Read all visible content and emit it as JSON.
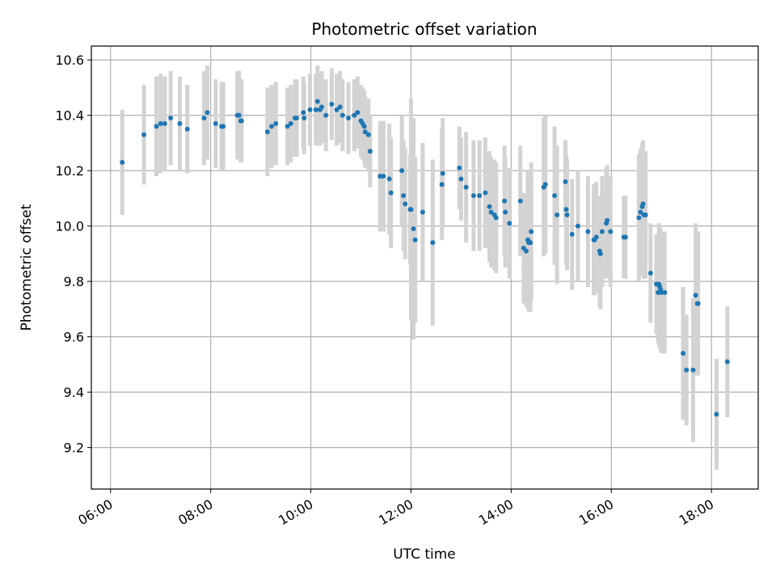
{
  "chart_data": {
    "type": "scatter",
    "title": "Photometric offset variation",
    "xlabel": "UTC time",
    "ylabel": "Photometric offset",
    "x_ticks": [
      "06:00",
      "08:00",
      "10:00",
      "12:00",
      "14:00",
      "16:00",
      "18:00"
    ],
    "y_ticks": [
      "9.2",
      "9.4",
      "9.6",
      "9.8",
      "10.0",
      "10.2",
      "10.4",
      "10.6"
    ],
    "xlim": [
      "05:37",
      "18:56"
    ],
    "ylim": [
      9.05,
      10.65
    ],
    "grid": true,
    "marker_color": "#1f77b4",
    "errorbar_color": "#d3d3d3",
    "series": [
      {
        "x": [
          "06:14",
          "06:40",
          "06:55",
          "07:00",
          "07:05",
          "07:12",
          "07:23",
          "07:32",
          "07:52",
          "07:56",
          "08:06",
          "08:13",
          "08:15",
          "08:32",
          "08:34",
          "08:36",
          "08:37",
          "09:08",
          "09:13",
          "09:18",
          "09:32",
          "09:36",
          "09:41",
          "09:43",
          "09:51",
          "09:52",
          "09:59",
          "10:06",
          "10:08",
          "10:11",
          "10:13",
          "10:18",
          "10:25",
          "10:31",
          "10:35",
          "10:38",
          "10:45",
          "10:52",
          "10:56",
          "11:00",
          "11:02",
          "11:04",
          "11:05",
          "11:09",
          "11:11",
          "11:23",
          "11:27",
          "11:34",
          "11:36",
          "11:49",
          "11:51",
          "11:53",
          "11:59",
          "12:00",
          "12:03",
          "12:05",
          "12:14",
          "12:26",
          "12:37",
          "12:38",
          "12:58",
          "13:00",
          "13:06",
          "13:15",
          "13:22",
          "13:29",
          "13:34",
          "13:36",
          "13:40",
          "13:42",
          "13:52",
          "13:53",
          "13:58",
          "14:11",
          "14:15",
          "14:18",
          "14:20",
          "14:21",
          "14:23",
          "14:24",
          "14:39",
          "14:41",
          "14:52",
          "14:55",
          "15:05",
          "15:06",
          "15:07",
          "15:13",
          "15:20",
          "15:32",
          "15:39",
          "15:40",
          "15:42",
          "15:46",
          "15:47",
          "15:49",
          "15:54",
          "15:55",
          "15:59",
          "16:15",
          "16:17",
          "16:33",
          "16:35",
          "16:37",
          "16:38",
          "16:39",
          "16:41",
          "16:47",
          "16:54",
          "16:56",
          "16:57",
          "16:58",
          "16:59",
          "17:00",
          "17:04",
          "17:26",
          "17:30",
          "17:38",
          "17:41",
          "17:43",
          "17:44",
          "18:06",
          "18:19"
        ],
        "y": [
          10.23,
          10.33,
          10.36,
          10.37,
          10.37,
          10.39,
          10.37,
          10.35,
          10.39,
          10.41,
          10.37,
          10.36,
          10.36,
          10.4,
          10.4,
          10.38,
          10.38,
          10.34,
          10.36,
          10.37,
          10.36,
          10.37,
          10.39,
          10.39,
          10.41,
          10.39,
          10.42,
          10.42,
          10.45,
          10.42,
          10.43,
          10.4,
          10.44,
          10.42,
          10.43,
          10.4,
          10.39,
          10.4,
          10.41,
          10.38,
          10.37,
          10.36,
          10.34,
          10.33,
          10.27,
          10.18,
          10.18,
          10.17,
          10.12,
          10.2,
          10.11,
          10.08,
          10.06,
          10.06,
          9.99,
          9.95,
          10.05,
          9.94,
          10.15,
          10.19,
          10.21,
          10.17,
          10.14,
          10.11,
          10.11,
          10.12,
          10.07,
          10.05,
          10.04,
          10.03,
          10.09,
          10.05,
          10.01,
          10.09,
          9.92,
          9.91,
          9.95,
          9.94,
          9.94,
          9.98,
          10.14,
          10.15,
          10.11,
          10.04,
          10.16,
          10.06,
          10.04,
          9.97,
          10.0,
          9.98,
          9.95,
          9.95,
          9.96,
          9.91,
          9.9,
          9.98,
          10.01,
          10.02,
          9.98,
          9.96,
          9.96,
          10.03,
          10.05,
          10.07,
          10.08,
          10.04,
          10.04,
          9.83,
          9.79,
          9.76,
          9.79,
          9.78,
          9.77,
          9.76,
          9.76,
          9.54,
          9.48,
          9.48,
          9.75,
          9.72,
          9.72,
          9.32,
          9.51
        ],
        "err": [
          0.19,
          0.18,
          0.18,
          0.18,
          0.17,
          0.17,
          0.17,
          0.16,
          0.17,
          0.17,
          0.16,
          0.16,
          0.16,
          0.16,
          0.16,
          0.15,
          0.15,
          0.16,
          0.15,
          0.15,
          0.14,
          0.14,
          0.14,
          0.14,
          0.13,
          0.13,
          0.13,
          0.13,
          0.13,
          0.13,
          0.13,
          0.13,
          0.13,
          0.13,
          0.13,
          0.13,
          0.13,
          0.13,
          0.13,
          0.13,
          0.13,
          0.13,
          0.13,
          0.13,
          0.13,
          0.2,
          0.2,
          0.2,
          0.2,
          0.2,
          0.2,
          0.2,
          0.2,
          0.4,
          0.4,
          0.3,
          0.25,
          0.3,
          0.2,
          0.2,
          0.15,
          0.15,
          0.2,
          0.2,
          0.2,
          0.2,
          0.2,
          0.2,
          0.2,
          0.2,
          0.2,
          0.2,
          0.2,
          0.2,
          0.2,
          0.2,
          0.25,
          0.25,
          0.25,
          0.25,
          0.25,
          0.25,
          0.25,
          0.25,
          0.15,
          0.2,
          0.2,
          0.2,
          0.2,
          0.2,
          0.2,
          0.2,
          0.2,
          0.2,
          0.2,
          0.2,
          0.2,
          0.2,
          0.2,
          0.15,
          0.15,
          0.23,
          0.23,
          0.23,
          0.23,
          0.23,
          0.23,
          0.18,
          0.18,
          0.18,
          0.22,
          0.22,
          0.22,
          0.22,
          0.22,
          0.24,
          0.2,
          0.26,
          0.26,
          0.26,
          0.26,
          0.2,
          0.2
        ]
      }
    ]
  }
}
